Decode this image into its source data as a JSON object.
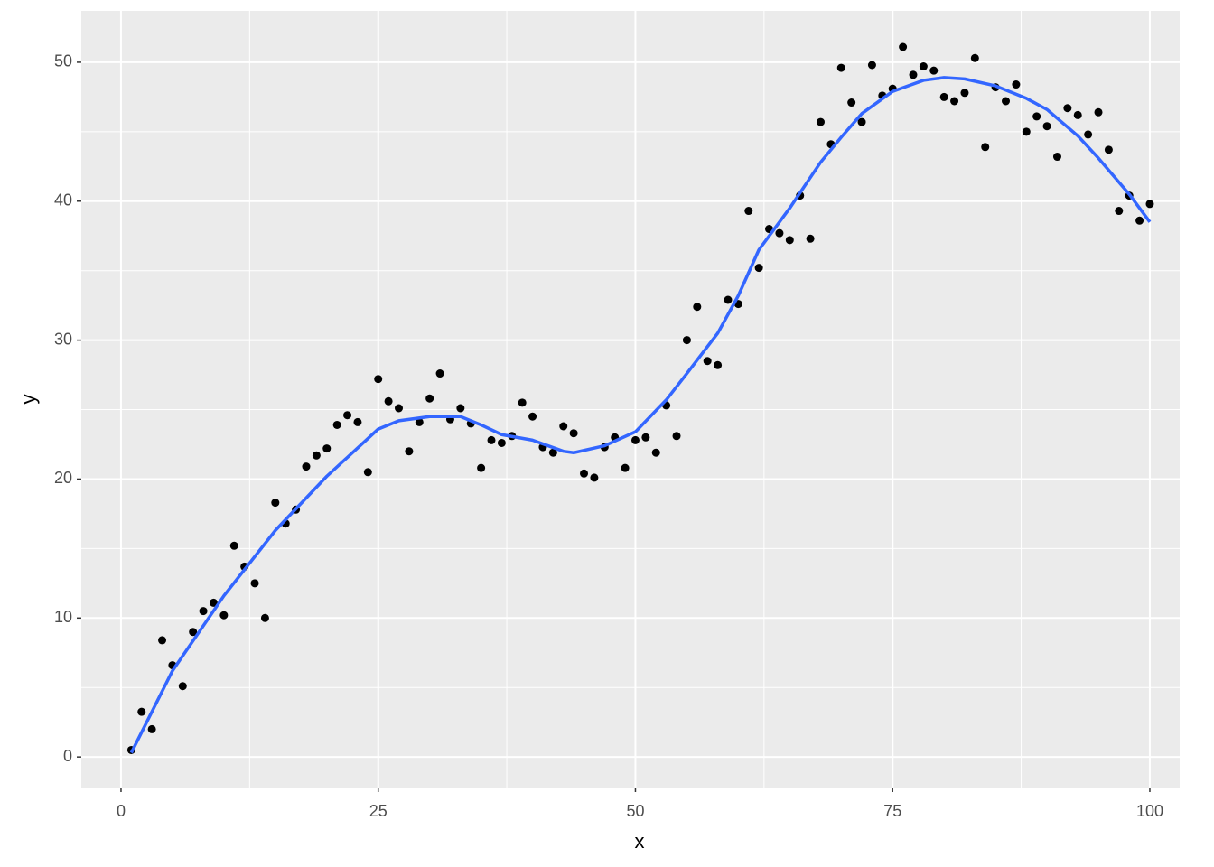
{
  "chart_data": {
    "type": "scatter",
    "x_label": "x",
    "y_label": "y",
    "xlim": [
      -3.86,
      102.9
    ],
    "ylim": [
      -2.2,
      53.7
    ],
    "xticks": [
      0,
      25,
      50,
      75,
      100
    ],
    "yticks": [
      0,
      10,
      20,
      30,
      40,
      50
    ],
    "grid": true,
    "point_color": "#000000",
    "x": [
      1,
      2,
      3,
      4,
      5,
      6,
      7,
      8,
      9,
      10,
      11,
      12,
      13,
      14,
      15,
      16,
      17,
      18,
      19,
      20,
      21,
      22,
      23,
      24,
      25,
      26,
      27,
      28,
      29,
      30,
      31,
      32,
      33,
      34,
      35,
      36,
      37,
      38,
      39,
      40,
      41,
      42,
      43,
      44,
      45,
      46,
      47,
      48,
      49,
      50,
      51,
      52,
      53,
      54,
      55,
      56,
      57,
      58,
      59,
      60,
      61,
      62,
      63,
      64,
      65,
      66,
      67,
      68,
      69,
      70,
      71,
      72,
      73,
      74,
      75,
      76,
      77,
      78,
      79,
      80,
      81,
      82,
      83,
      84,
      85,
      86,
      87,
      88,
      89,
      90,
      91,
      92,
      93,
      94,
      95,
      96,
      97,
      98,
      99,
      100
    ],
    "y": [
      0.5,
      3.25,
      2.0,
      8.4,
      6.6,
      5.1,
      9.0,
      10.5,
      11.1,
      10.2,
      15.2,
      13.7,
      12.5,
      10.0,
      18.3,
      16.8,
      17.8,
      20.9,
      21.7,
      22.2,
      23.9,
      24.6,
      24.1,
      20.5,
      27.2,
      25.6,
      25.1,
      22.0,
      24.1,
      25.8,
      27.6,
      24.3,
      25.1,
      24.0,
      20.8,
      22.8,
      22.6,
      23.1,
      25.5,
      24.5,
      22.3,
      21.9,
      23.8,
      23.3,
      20.4,
      20.1,
      22.3,
      23.0,
      20.8,
      22.8,
      23.0,
      21.9,
      25.3,
      23.1,
      30.0,
      32.4,
      28.5,
      28.2,
      32.9,
      32.6,
      39.3,
      35.2,
      38.0,
      37.7,
      37.2,
      40.4,
      37.3,
      45.7,
      44.1,
      49.6,
      47.1,
      45.7,
      49.8,
      47.6,
      48.1,
      51.1,
      49.1,
      49.7,
      49.4,
      47.5,
      47.2,
      47.8,
      50.3,
      43.9,
      48.2,
      47.2,
      48.4,
      45.0,
      46.1,
      45.4,
      43.2,
      46.7,
      46.2,
      44.8,
      46.4,
      43.7,
      39.3,
      40.4,
      38.6,
      39.8
    ],
    "smooth": {
      "color": "#3366ff",
      "x": [
        1,
        5,
        10,
        15,
        20,
        25,
        27,
        30,
        33,
        35,
        37,
        40,
        43,
        44,
        47,
        50,
        53,
        55,
        58,
        60,
        62,
        65,
        68,
        70,
        72,
        75,
        78,
        80,
        82,
        85,
        88,
        90,
        93,
        95,
        98,
        100
      ],
      "y": [
        0.3,
        6.2,
        11.6,
        16.3,
        20.2,
        23.6,
        24.2,
        24.5,
        24.5,
        23.9,
        23.2,
        22.8,
        22.0,
        21.9,
        22.4,
        23.4,
        25.7,
        27.6,
        30.5,
        33.2,
        36.5,
        39.5,
        42.8,
        44.6,
        46.3,
        47.9,
        48.7,
        48.9,
        48.8,
        48.3,
        47.4,
        46.6,
        44.7,
        43.1,
        40.5,
        38.5
      ]
    }
  }
}
